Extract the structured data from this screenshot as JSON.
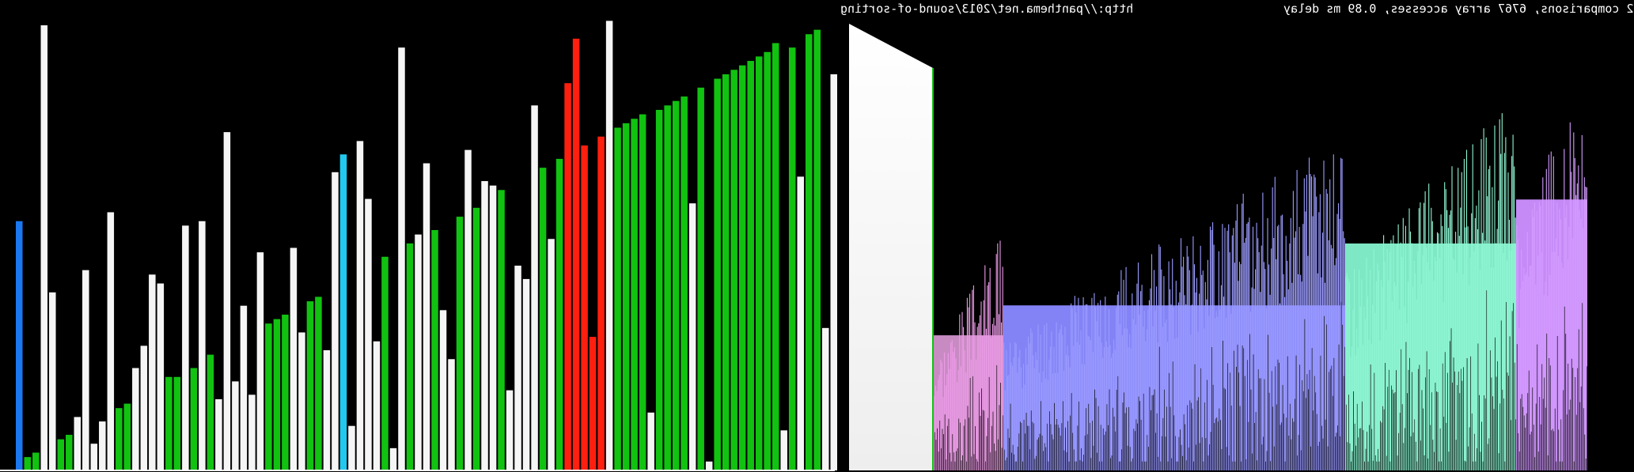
{
  "hud": {
    "url": "http://panthema.net/2013/sound-of-sorting",
    "stats": "2 comparisons, 6767 array accesses, 0.89 ms delay"
  },
  "colors": {
    "background": "#000000",
    "unsorted": "#f5f5f5",
    "sorted": "#11c211",
    "compare": "#ff1f0f",
    "pointer_a": "#1b78f0",
    "pointer_b": "#22c8ee",
    "baseline": "#ffffff"
  },
  "bars_left": [
    {
      "v": 0.56,
      "c": "pointer_a"
    },
    {
      "v": 0.03,
      "c": "sorted"
    },
    {
      "v": 0.04,
      "c": "sorted"
    },
    {
      "v": 1.0,
      "c": "unsorted"
    },
    {
      "v": 0.4,
      "c": "unsorted"
    },
    {
      "v": 0.07,
      "c": "sorted"
    },
    {
      "v": 0.08,
      "c": "sorted"
    },
    {
      "v": 0.12,
      "c": "unsorted"
    },
    {
      "v": 0.45,
      "c": "unsorted"
    },
    {
      "v": 0.06,
      "c": "unsorted"
    },
    {
      "v": 0.11,
      "c": "unsorted"
    },
    {
      "v": 0.58,
      "c": "unsorted"
    },
    {
      "v": 0.14,
      "c": "sorted"
    },
    {
      "v": 0.15,
      "c": "sorted"
    },
    {
      "v": 0.23,
      "c": "unsorted"
    },
    {
      "v": 0.28,
      "c": "unsorted"
    },
    {
      "v": 0.44,
      "c": "unsorted"
    },
    {
      "v": 0.42,
      "c": "unsorted"
    },
    {
      "v": 0.21,
      "c": "sorted"
    },
    {
      "v": 0.21,
      "c": "sorted"
    },
    {
      "v": 0.55,
      "c": "unsorted"
    },
    {
      "v": 0.23,
      "c": "sorted"
    },
    {
      "v": 0.56,
      "c": "unsorted"
    },
    {
      "v": 0.26,
      "c": "sorted"
    },
    {
      "v": 0.16,
      "c": "unsorted"
    },
    {
      "v": 0.76,
      "c": "unsorted"
    },
    {
      "v": 0.2,
      "c": "unsorted"
    },
    {
      "v": 0.37,
      "c": "unsorted"
    },
    {
      "v": 0.17,
      "c": "unsorted"
    },
    {
      "v": 0.49,
      "c": "unsorted"
    },
    {
      "v": 0.33,
      "c": "sorted"
    },
    {
      "v": 0.34,
      "c": "sorted"
    },
    {
      "v": 0.35,
      "c": "sorted"
    },
    {
      "v": 0.5,
      "c": "unsorted"
    },
    {
      "v": 0.31,
      "c": "unsorted"
    },
    {
      "v": 0.38,
      "c": "sorted"
    },
    {
      "v": 0.39,
      "c": "sorted"
    },
    {
      "v": 0.27,
      "c": "unsorted"
    },
    {
      "v": 0.67,
      "c": "unsorted"
    },
    {
      "v": 0.71,
      "c": "pointer_b"
    },
    {
      "v": 0.1,
      "c": "unsorted"
    },
    {
      "v": 0.74,
      "c": "unsorted"
    },
    {
      "v": 0.61,
      "c": "unsorted"
    },
    {
      "v": 0.29,
      "c": "unsorted"
    },
    {
      "v": 0.48,
      "c": "sorted"
    },
    {
      "v": 0.05,
      "c": "unsorted"
    },
    {
      "v": 0.95,
      "c": "unsorted"
    },
    {
      "v": 0.51,
      "c": "sorted"
    },
    {
      "v": 0.53,
      "c": "unsorted"
    },
    {
      "v": 0.69,
      "c": "unsorted"
    },
    {
      "v": 0.54,
      "c": "sorted"
    },
    {
      "v": 0.36,
      "c": "unsorted"
    },
    {
      "v": 0.25,
      "c": "unsorted"
    },
    {
      "v": 0.57,
      "c": "sorted"
    },
    {
      "v": 0.72,
      "c": "unsorted"
    },
    {
      "v": 0.59,
      "c": "sorted"
    },
    {
      "v": 0.65,
      "c": "unsorted"
    },
    {
      "v": 0.64,
      "c": "unsorted"
    },
    {
      "v": 0.63,
      "c": "sorted"
    },
    {
      "v": 0.18,
      "c": "unsorted"
    },
    {
      "v": 0.46,
      "c": "unsorted"
    },
    {
      "v": 0.43,
      "c": "unsorted"
    },
    {
      "v": 0.82,
      "c": "unsorted"
    },
    {
      "v": 0.68,
      "c": "sorted"
    },
    {
      "v": 0.52,
      "c": "unsorted"
    },
    {
      "v": 0.7,
      "c": "sorted"
    },
    {
      "v": 0.87,
      "c": "compare"
    },
    {
      "v": 0.97,
      "c": "compare"
    },
    {
      "v": 0.73,
      "c": "compare"
    },
    {
      "v": 0.3,
      "c": "compare"
    },
    {
      "v": 0.75,
      "c": "compare"
    },
    {
      "v": 1.01,
      "c": "unsorted"
    },
    {
      "v": 0.77,
      "c": "sorted"
    },
    {
      "v": 0.78,
      "c": "sorted"
    },
    {
      "v": 0.79,
      "c": "sorted"
    },
    {
      "v": 0.8,
      "c": "sorted"
    },
    {
      "v": 0.13,
      "c": "unsorted"
    },
    {
      "v": 0.81,
      "c": "sorted"
    },
    {
      "v": 0.82,
      "c": "sorted"
    },
    {
      "v": 0.83,
      "c": "sorted"
    },
    {
      "v": 0.84,
      "c": "sorted"
    },
    {
      "v": 0.6,
      "c": "unsorted"
    },
    {
      "v": 0.86,
      "c": "sorted"
    },
    {
      "v": 0.02,
      "c": "unsorted"
    },
    {
      "v": 0.88,
      "c": "sorted"
    },
    {
      "v": 0.89,
      "c": "sorted"
    },
    {
      "v": 0.9,
      "c": "sorted"
    },
    {
      "v": 0.91,
      "c": "sorted"
    },
    {
      "v": 0.92,
      "c": "sorted"
    },
    {
      "v": 0.93,
      "c": "sorted"
    },
    {
      "v": 0.94,
      "c": "sorted"
    },
    {
      "v": 0.96,
      "c": "sorted"
    },
    {
      "v": 0.09,
      "c": "unsorted"
    },
    {
      "v": 0.95,
      "c": "sorted"
    },
    {
      "v": 0.66,
      "c": "unsorted"
    },
    {
      "v": 0.98,
      "c": "sorted"
    },
    {
      "v": 0.99,
      "c": "sorted"
    },
    {
      "v": 0.32,
      "c": "unsorted"
    },
    {
      "v": 0.89,
      "c": "unsorted"
    }
  ],
  "spectrum": {
    "white_wedge": {
      "color_top": "#ffffff",
      "color_bottom": "#eeeeee"
    },
    "segments": [
      {
        "fill": "#c78bc2",
        "stroke": "#ed9be8",
        "lo": 0.1,
        "hi": 0.55,
        "count": 55,
        "seed": 3
      },
      {
        "fill": "#8383f6",
        "stroke": "#9b9bff",
        "lo": 0.05,
        "hi": 0.76,
        "count": 280,
        "seed": 11
      },
      {
        "fill": "#7ee7c4",
        "stroke": "#8ff6d3",
        "lo": 0.22,
        "hi": 0.86,
        "count": 140,
        "seed": 29
      },
      {
        "fill": "#c58af6",
        "stroke": "#d49bff",
        "lo": 0.35,
        "hi": 0.92,
        "count": 60,
        "seed": 47
      }
    ]
  }
}
